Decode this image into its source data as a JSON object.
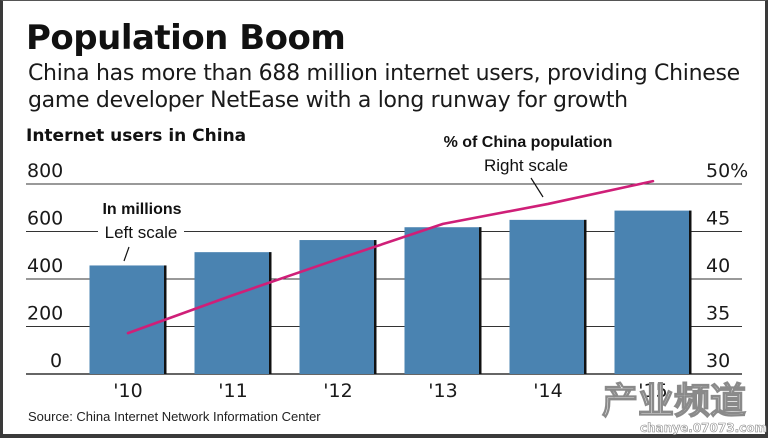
{
  "header": {
    "title": "Population Boom",
    "subtitle_line1": "China has more than 688 million internet users, providing Chinese",
    "subtitle_line2": "game developer NetEase with a long runway for growth",
    "chart_label": "Internet users in China"
  },
  "footer": {
    "source": "Source: China Internet Network Information Center"
  },
  "watermark": {
    "text": "产业频道",
    "url_text": "chanye.07073.com"
  },
  "colors": {
    "bar": "#4a83b1",
    "bar_edge": "#111111",
    "line": "#cf1f78",
    "grid": "#333333"
  },
  "chart_data": {
    "type": "bar",
    "title": "Internet users in China",
    "categories": [
      "'10",
      "'11",
      "'12",
      "'13",
      "'14",
      "'15"
    ],
    "series": [
      {
        "name": "Internet users",
        "type": "bar",
        "axis": "left",
        "unit": "millions",
        "annotation_bold": "In millions",
        "annotation": "Left scale",
        "values": [
          457,
          513,
          564,
          618,
          649,
          688
        ]
      },
      {
        "name": "% of China population",
        "type": "line",
        "axis": "right",
        "unit": "%",
        "annotation_bold": "% of China population",
        "annotation": "Right scale",
        "values": [
          34.3,
          38.3,
          42.1,
          45.8,
          47.9,
          50.3
        ]
      }
    ],
    "left_axis": {
      "ylim": [
        0,
        800
      ],
      "ticks": [
        0,
        200,
        400,
        600,
        800
      ],
      "tick_labels": [
        "0",
        "200",
        "400",
        "600",
        "800"
      ]
    },
    "right_axis": {
      "ylim": [
        30,
        50
      ],
      "ticks": [
        30,
        35,
        40,
        45,
        50
      ],
      "tick_labels": [
        "30",
        "35",
        "40",
        "45",
        "50%"
      ]
    },
    "xlabel": "",
    "ylabel": "",
    "grid": true,
    "legend": "none (inline annotations)"
  }
}
